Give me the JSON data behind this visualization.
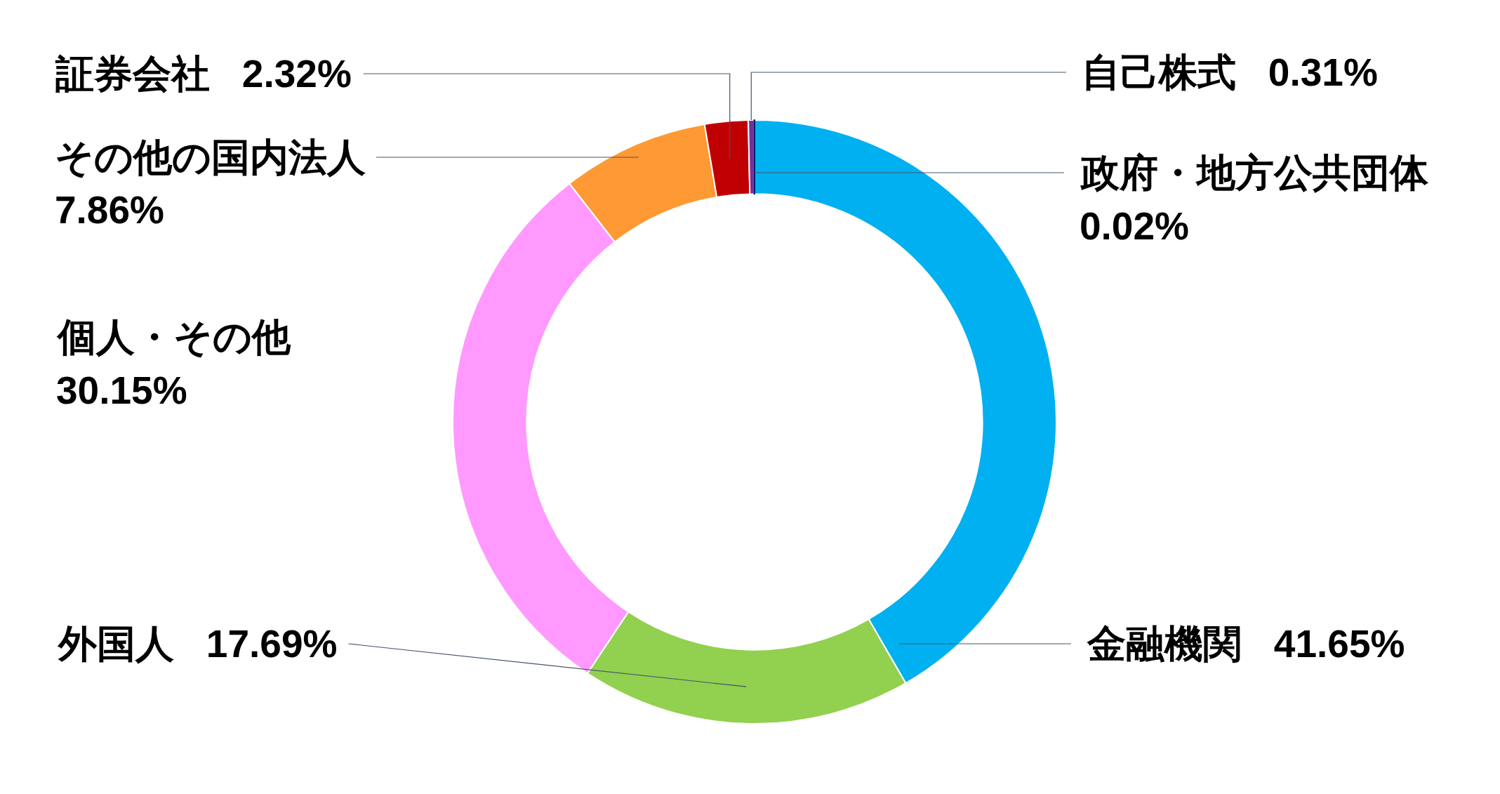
{
  "chart_data": {
    "type": "donut",
    "categories": [
      "金融機関",
      "外国人",
      "個人・その他",
      "その他の国内法人",
      "証券会社",
      "自己株式",
      "政府・地方公共団体"
    ],
    "values": [
      41.65,
      17.69,
      30.15,
      7.86,
      2.32,
      0.31,
      0.02
    ],
    "colors": [
      "#00b0f0",
      "#92d050",
      "#ff99ff",
      "#ff9933",
      "#c00000",
      "#7030a0",
      "#002060"
    ],
    "value_labels": [
      "41.65%",
      "17.69%",
      "30.15%",
      "7.86%",
      "2.32%",
      "0.31%",
      "0.02%"
    ]
  }
}
